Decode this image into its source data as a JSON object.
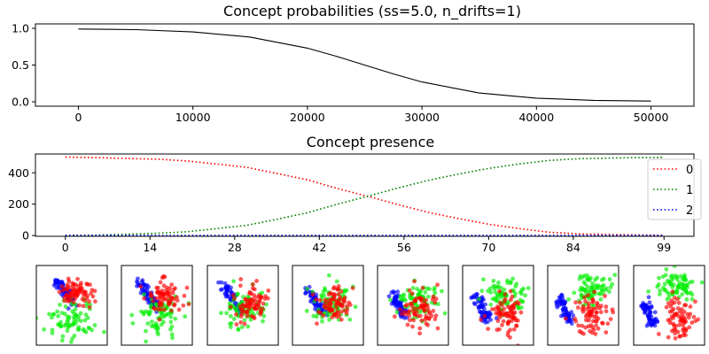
{
  "chart_data": [
    {
      "type": "line",
      "title": "Concept probabilities (ss=5.0, n_drifts=1)",
      "xlim": [
        -3750,
        53750
      ],
      "ylim": [
        -0.06,
        1.06
      ],
      "x_ticks": [
        0,
        10000,
        20000,
        30000,
        40000,
        50000
      ],
      "x_tick_labels": [
        "0",
        "10000",
        "20000",
        "30000",
        "40000",
        "50000"
      ],
      "y_ticks": [
        0,
        0.5,
        1
      ],
      "y_tick_labels": [
        "0.0",
        "0.5",
        "1.0"
      ],
      "series": [
        {
          "color": "#000000",
          "style": "solid",
          "x": [
            0,
            5000,
            10000,
            15000,
            20000,
            22500,
            25000,
            27500,
            30000,
            35000,
            40000,
            45000,
            50000
          ],
          "y": [
            0.99,
            0.982,
            0.95,
            0.88,
            0.73,
            0.62,
            0.5,
            0.38,
            0.27,
            0.12,
            0.05,
            0.02,
            0.01
          ]
        }
      ]
    },
    {
      "type": "line",
      "title": "Concept presence",
      "xlim": [
        -4.95,
        103.95
      ],
      "ylim": [
        -5,
        520
      ],
      "x_ticks": [
        0,
        14,
        28,
        42,
        56,
        70,
        84,
        99
      ],
      "x_tick_labels": [
        "0",
        "14",
        "28",
        "42",
        "56",
        "70",
        "84",
        "99"
      ],
      "y_ticks": [
        0,
        200,
        400
      ],
      "y_tick_labels": [
        "0",
        "200",
        "400"
      ],
      "legend": {
        "position": "right",
        "entries": [
          "0",
          "1",
          "2"
        ]
      },
      "series": [
        {
          "name": "0",
          "color": "#ff0000",
          "style": "dotted",
          "x": [
            0,
            5,
            10,
            15,
            20,
            25,
            30,
            35,
            40,
            45,
            50,
            55,
            60,
            65,
            70,
            75,
            80,
            85,
            90,
            95,
            99
          ],
          "y": [
            500,
            497,
            492,
            487,
            476,
            456,
            435,
            396,
            355,
            300,
            250,
            197,
            148,
            108,
            72,
            44,
            21,
            10,
            6,
            3,
            2
          ]
        },
        {
          "name": "1",
          "color": "#008000",
          "style": "dotted",
          "x": [
            0,
            5,
            10,
            15,
            20,
            25,
            30,
            35,
            40,
            45,
            50,
            55,
            60,
            65,
            70,
            75,
            80,
            85,
            90,
            95,
            99
          ],
          "y": [
            0,
            3,
            8,
            14,
            24,
            44,
            65,
            104,
            145,
            200,
            250,
            303,
            352,
            392,
            428,
            456,
            479,
            490,
            494,
            497,
            498
          ]
        },
        {
          "name": "2",
          "color": "#0000ff",
          "style": "dotted",
          "x": [
            0,
            99
          ],
          "y": [
            0,
            0
          ]
        }
      ]
    }
  ],
  "scatter_panels": {
    "colors": {
      "concept_0": "#ff0000",
      "concept_1": "#00ee00",
      "concept_2": "#0000ff"
    },
    "count": 8
  }
}
